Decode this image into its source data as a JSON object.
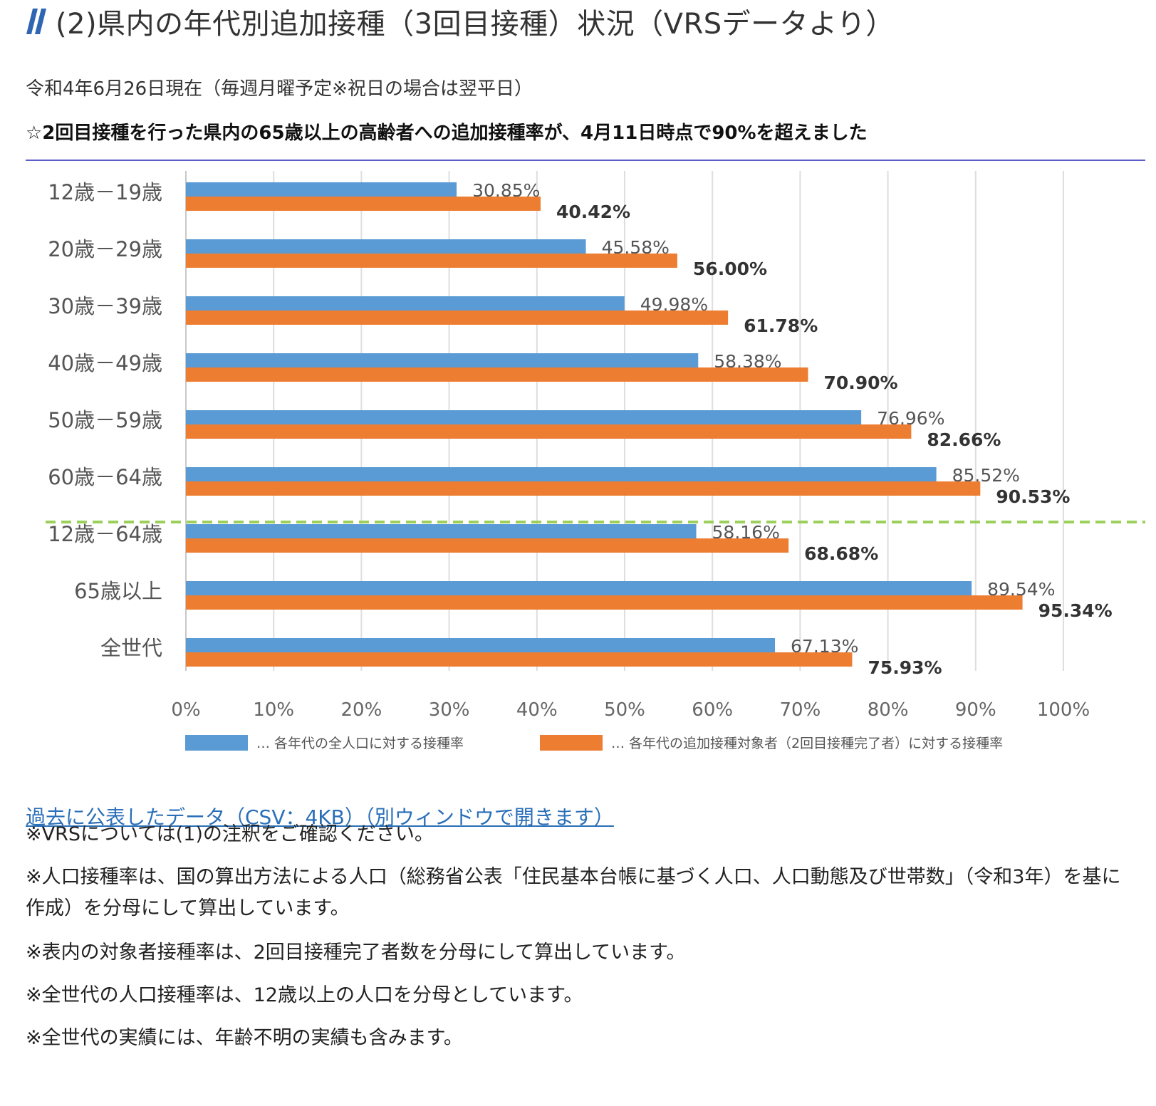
{
  "heading": {
    "text": "(2)県内の年代別追加接種（3回目接種）状況（VRSデータより）",
    "mark_icon": "double-slash-icon",
    "mark_color": "#2f66b3"
  },
  "date_line": "令和4年6月26日現在（毎週月曜予定※祝日の場合は翌平日）",
  "notice": "☆2回目接種を行った県内の65歳以上の高齢者への追加接種率が、4月11日時点で90%を超えました",
  "chart_data": {
    "type": "bar",
    "orientation": "horizontal",
    "categories": [
      "12歳－19歳",
      "20歳－29歳",
      "30歳－39歳",
      "40歳－49歳",
      "50歳－59歳",
      "60歳－64歳",
      "12歳－64歳",
      "65歳以上",
      "全世代"
    ],
    "series": [
      {
        "name": "… 各年代の全人口に対する接種率",
        "color": "#5b9bd5",
        "values": [
          30.85,
          45.58,
          49.98,
          58.38,
          76.96,
          85.52,
          58.16,
          89.54,
          67.13
        ],
        "labels": [
          "30.85%",
          "45.58%",
          "49.98%",
          "58.38%",
          "76.96%",
          "85.52%",
          "58.16%",
          "89.54%",
          "67.13%"
        ]
      },
      {
        "name": "… 各年代の追加接種対象者（2回目接種完了者）に対する接種率",
        "color": "#ed7d31",
        "values": [
          40.42,
          56.0,
          61.78,
          70.9,
          82.66,
          90.53,
          68.68,
          95.34,
          75.93
        ],
        "labels": [
          "40.42%",
          "56.00%",
          "61.78%",
          "70.90%",
          "82.66%",
          "90.53%",
          "68.68%",
          "95.34%",
          "75.93%"
        ]
      }
    ],
    "xlim": [
      0,
      100
    ],
    "xticks": [
      0,
      10,
      20,
      30,
      40,
      50,
      60,
      70,
      80,
      90,
      100
    ],
    "xtick_labels": [
      "0%",
      "10%",
      "20%",
      "30%",
      "40%",
      "50%",
      "60%",
      "70%",
      "80%",
      "90%",
      "100%"
    ],
    "grid": true,
    "separator_after_category": "60歳－64歳",
    "separator_color": "#9bd05a",
    "legend_position": "bottom"
  },
  "link": {
    "text": "過去に公表したデータ（CSV：4KB）（別ウィンドウで開きます）",
    "color": "#2a6fb8"
  },
  "notes": [
    "※VRSについては(1)の注釈をご確認ください。",
    "※人口接種率は、国の算出方法による人口（総務省公表「住民基本台帳に基づく人口、人口動態及び世帯数」（令和3年）を基に作成）を分母にして算出しています。",
    "※表内の対象者接種率は、2回目接種完了者数を分母にして算出しています。",
    "※全世代の人口接種率は、12歳以上の人口を分母としています。",
    "※全世代の実績には、年齢不明の実績も含みます。"
  ]
}
